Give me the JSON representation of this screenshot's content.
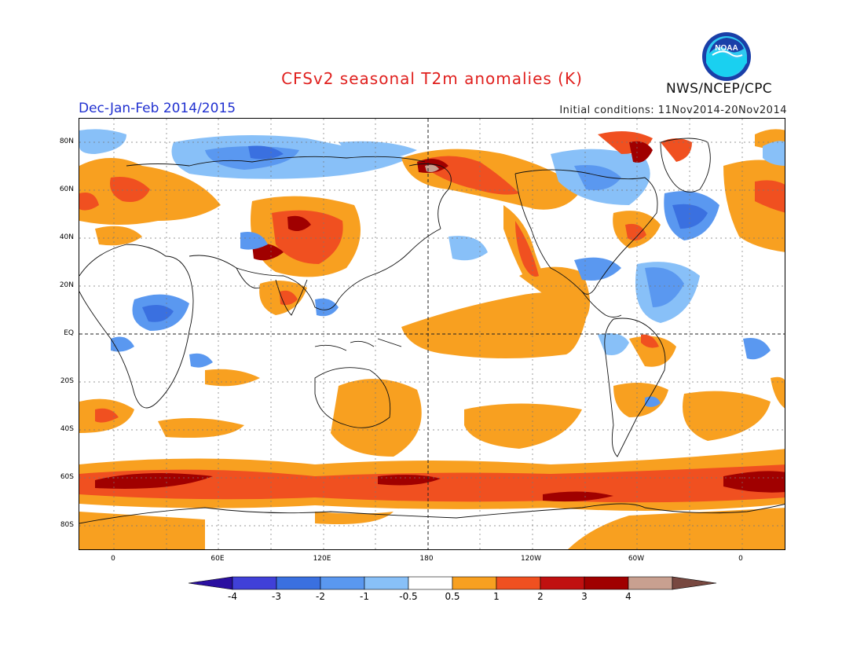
{
  "title": "CFSv2 seasonal T2m anomalies (K)",
  "period": "Dec-Jan-Feb 2014/2015",
  "initial_conditions": "Initial conditions: 11Nov2014-20Nov2014",
  "agency": "NWS/NCEP/CPC",
  "logo_text": "NOAA",
  "lat_labels": [
    "80N",
    "60N",
    "40N",
    "20N",
    "EQ",
    "20S",
    "40S",
    "60S",
    "80S"
  ],
  "lon_labels": [
    "0",
    "60E",
    "120E",
    "180",
    "120W",
    "60W",
    "0"
  ],
  "colorbar": {
    "labels": [
      "-4",
      "-3",
      "-2",
      "-1",
      "-0.5",
      "0.5",
      "1",
      "2",
      "3",
      "4"
    ],
    "colors": [
      "#2a0fa0",
      "#4040d8",
      "#3a70e0",
      "#5a98f0",
      "#88c0f8",
      "#ffffff",
      "#f8a020",
      "#f05020",
      "#c01010",
      "#a00000",
      "#c8a090",
      "#784840"
    ]
  },
  "palette": {
    "warm1": "#f8a020",
    "warm2": "#f05020",
    "warm3": "#a00000",
    "warm4": "#c8a090",
    "cool1": "#88c0f8",
    "cool2": "#5a98f0",
    "cool3": "#3a70e0",
    "cool4": "#4040d8",
    "title_red": "#e0201e",
    "period_blue": "#2030d0"
  }
}
